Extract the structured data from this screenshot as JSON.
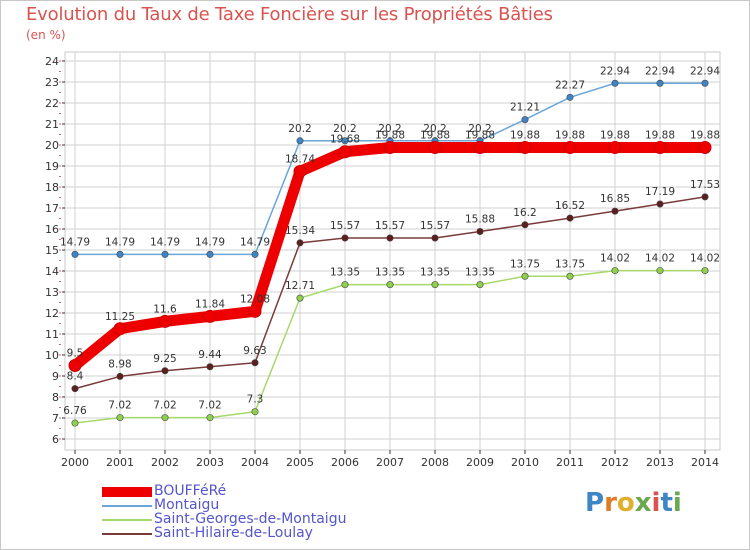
{
  "title": "Evolution du Taux de Taxe Foncière sur les Propriétés Bâties",
  "unit": "(en %)",
  "logo_text": "Proxiti",
  "colors": {
    "title": "#d9534f",
    "grid": "#d0d0d0",
    "axis": "#333333",
    "legend_text": "#5555cc"
  },
  "chart_data": {
    "type": "line",
    "x": [
      "2000",
      "2001",
      "2002",
      "2003",
      "2004",
      "2005",
      "2006",
      "2007",
      "2008",
      "2009",
      "2010",
      "2011",
      "2012",
      "2013",
      "2014"
    ],
    "ylim": [
      6,
      24
    ],
    "yticks": [
      6,
      7,
      8,
      9,
      10,
      11,
      12,
      13,
      14,
      15,
      16,
      17,
      18,
      19,
      20,
      21,
      22,
      23,
      24
    ],
    "grid": true,
    "legend_position": "bottom-left",
    "series": [
      {
        "name": "BOUFFéRé",
        "color": "#ee0000",
        "marker_fill": "#ee0000",
        "thick": true,
        "values": [
          9.5,
          11.25,
          11.6,
          11.84,
          12.08,
          18.74,
          19.68,
          19.88,
          19.88,
          19.88,
          19.88,
          19.88,
          19.88,
          19.88,
          19.88
        ],
        "labels": [
          "9.5",
          "11.25",
          "11.6",
          "11.84",
          "12.08",
          "18.74",
          "19.68",
          "19.88",
          "19.88",
          "19.88",
          "19.88",
          "19.88",
          "19.88",
          "19.88",
          "19.88"
        ]
      },
      {
        "name": "Montaigu",
        "color": "#6aa7d8",
        "marker_fill": "#3d85c6",
        "thick": false,
        "values": [
          14.79,
          14.79,
          14.79,
          14.79,
          14.79,
          20.2,
          20.2,
          20.2,
          20.2,
          20.2,
          21.21,
          22.27,
          22.94,
          22.94,
          22.94
        ],
        "labels": [
          "14.79",
          "14.79",
          "14.79",
          "14.79",
          "14.79",
          "20.2",
          "20.2",
          "20.2",
          "20.2",
          "20.2",
          "21.21",
          "22.27",
          "22.94",
          "22.94",
          "22.94"
        ]
      },
      {
        "name": "Saint-Georges-de-Montaigu",
        "color": "#a6d96a",
        "marker_fill": "#8fd14f",
        "thick": false,
        "values": [
          6.76,
          7.02,
          7.02,
          7.02,
          7.3,
          12.71,
          13.35,
          13.35,
          13.35,
          13.35,
          13.75,
          13.75,
          14.02,
          14.02,
          14.02
        ],
        "labels": [
          "6.76",
          "7.02",
          "7.02",
          "7.02",
          "7.3",
          "12.71",
          "13.35",
          "13.35",
          "13.35",
          "13.35",
          "13.75",
          "13.75",
          "14.02",
          "14.02",
          "14.02"
        ]
      },
      {
        "name": "Saint-Hilaire-de-Loulay",
        "color": "#7a3b3b",
        "marker_fill": "#5c1f1f",
        "thick": false,
        "values": [
          8.4,
          8.98,
          9.25,
          9.44,
          9.63,
          15.34,
          15.57,
          15.57,
          15.57,
          15.88,
          16.2,
          16.52,
          16.85,
          17.19,
          17.53
        ],
        "labels": [
          "8.4",
          "8.98",
          "9.25",
          "9.44",
          "9.63",
          "15.34",
          "15.57",
          "15.57",
          "15.57",
          "15.88",
          "16.2",
          "16.52",
          "16.85",
          "17.19",
          "17.53"
        ]
      }
    ]
  }
}
